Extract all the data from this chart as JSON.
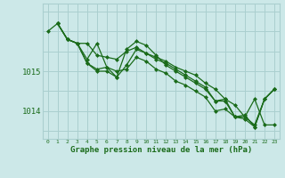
{
  "background_color": "#cce8e8",
  "grid_color": "#aacfcf",
  "line_color": "#1a6b1a",
  "marker_color": "#1a6b1a",
  "xlabel": "Graphe pression niveau de la mer (hPa)",
  "xlabel_color": "#1a6b1a",
  "xtick_color": "#1a6b1a",
  "ytick_color": "#1a6b1a",
  "ylim": [
    1013.3,
    1016.7
  ],
  "xlim": [
    -0.5,
    23.5
  ],
  "yticks": [
    1014.0,
    1015.0
  ],
  "xticks": [
    0,
    1,
    2,
    3,
    4,
    5,
    6,
    7,
    8,
    9,
    10,
    11,
    12,
    13,
    14,
    15,
    16,
    17,
    18,
    19,
    20,
    21,
    22,
    23
  ],
  "series": [
    {
      "x": [
        0,
        1,
        2,
        3,
        4,
        5,
        6,
        7,
        8,
        9,
        10,
        11,
        12,
        13,
        14,
        15,
        16,
        17,
        18,
        19,
        20,
        21,
        22,
        23
      ],
      "y": [
        1016.0,
        1016.2,
        1015.8,
        1015.7,
        1015.7,
        1015.4,
        1015.35,
        1015.3,
        1015.5,
        1015.6,
        1015.45,
        1015.35,
        1015.25,
        1015.1,
        1015.0,
        1014.9,
        1014.7,
        1014.55,
        1014.3,
        1014.15,
        1013.85,
        1014.3,
        1013.65,
        1013.65
      ]
    },
    {
      "x": [
        1,
        2,
        3,
        4,
        5,
        6,
        7,
        8,
        9,
        10,
        11,
        12,
        13,
        14,
        15,
        16,
        17,
        18,
        19,
        20,
        21,
        22,
        23
      ],
      "y": [
        1016.2,
        1015.8,
        1015.7,
        1015.3,
        1015.7,
        1015.1,
        1014.85,
        1015.15,
        1015.55,
        1015.45,
        1015.3,
        1015.2,
        1015.05,
        1014.9,
        1014.75,
        1014.6,
        1014.25,
        1014.3,
        1013.85,
        1013.85,
        1013.65,
        1014.3,
        1014.55
      ]
    },
    {
      "x": [
        1,
        2,
        3,
        4,
        5,
        6,
        7,
        8,
        9,
        10,
        11,
        12,
        13,
        14,
        15,
        16,
        17,
        18,
        19,
        20,
        21,
        22,
        23
      ],
      "y": [
        1016.2,
        1015.8,
        1015.7,
        1015.2,
        1015.0,
        1015.0,
        1014.85,
        1015.55,
        1015.75,
        1015.65,
        1015.4,
        1015.15,
        1015.0,
        1014.85,
        1014.7,
        1014.55,
        1014.25,
        1014.25,
        1013.85,
        1013.8,
        1013.6,
        1014.3,
        1014.55
      ]
    },
    {
      "x": [
        1,
        2,
        3,
        4,
        5,
        6,
        7,
        8,
        9,
        10,
        11,
        12,
        13,
        14,
        15,
        16,
        17,
        18,
        19,
        20,
        21,
        22,
        23
      ],
      "y": [
        1016.2,
        1015.8,
        1015.7,
        1015.2,
        1015.05,
        1015.1,
        1015.0,
        1015.05,
        1015.35,
        1015.25,
        1015.05,
        1014.95,
        1014.75,
        1014.65,
        1014.5,
        1014.35,
        1014.0,
        1014.05,
        1013.85,
        1013.9,
        1013.6,
        1014.3,
        1014.55
      ]
    }
  ]
}
